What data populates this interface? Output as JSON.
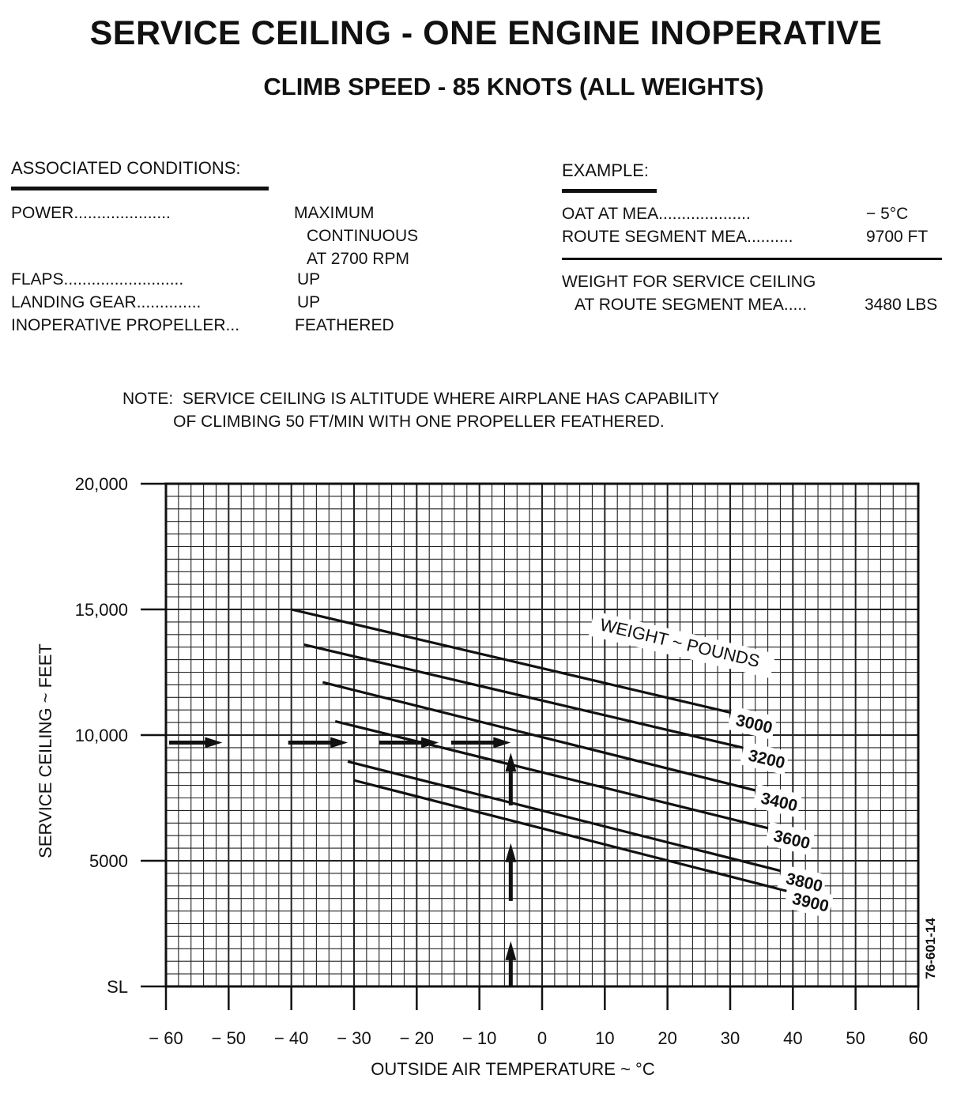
{
  "header": {
    "title": "SERVICE CEILING - ONE ENGINE INOPERATIVE",
    "subtitle": "CLIMB SPEED - 85 KNOTS (ALL WEIGHTS)"
  },
  "conditions": {
    "heading": "ASSOCIATED CONDITIONS:",
    "rows": [
      {
        "label": "POWER",
        "dots": ".....................",
        "value": "MAXIMUM"
      },
      {
        "label": "",
        "dots": "",
        "value": "CONTINUOUS"
      },
      {
        "label": "",
        "dots": "",
        "value": "AT 2700 RPM"
      },
      {
        "label": "FLAPS",
        "dots": "..........................",
        "value": "UP"
      },
      {
        "label": "LANDING GEAR",
        "dots": "..............",
        "value": "UP"
      },
      {
        "label": "INOPERATIVE PROPELLER",
        "dots": "...",
        "value": "FEATHERED"
      }
    ]
  },
  "example": {
    "heading": "EXAMPLE:",
    "rows": [
      {
        "label": "OAT AT MEA",
        "dots": "....................",
        "value": "− 5°C"
      },
      {
        "label": "ROUTE SEGMENT MEA",
        "dots": "..........",
        "value": "9700 FT"
      }
    ],
    "weight_line1": "WEIGHT FOR SERVICE CEILING",
    "weight_label": "AT ROUTE SEGMENT MEA",
    "weight_dots": ".....",
    "weight_value": "3480 LBS"
  },
  "note": {
    "line1": "NOTE:  SERVICE CEILING IS ALTITUDE WHERE AIRPLANE HAS CAPABILITY",
    "line2": "           OF CLIMBING 50 FT/MIN WITH ONE PROPELLER FEATHERED."
  },
  "chart_data": {
    "type": "line",
    "title": "SERVICE CEILING - ONE ENGINE INOPERATIVE",
    "subtitle": "CLIMB SPEED - 85 KNOTS (ALL WEIGHTS)",
    "xlabel": "OUTSIDE AIR TEMPERATURE ~ °C",
    "ylabel": "SERVICE CEILING ~ FEET",
    "xlim": [
      -60,
      60
    ],
    "ylim": [
      0,
      20000
    ],
    "x_ticks": [
      "− 60",
      "− 50",
      "− 40",
      "− 30",
      "− 20",
      "− 10",
      "0",
      "10",
      "20",
      "30",
      "40",
      "50",
      "60"
    ],
    "x_tick_values": [
      -60,
      -50,
      -40,
      -30,
      -20,
      -10,
      0,
      10,
      20,
      30,
      40,
      50,
      60
    ],
    "y_ticks": [
      "SL",
      "5000",
      "10,000",
      "15,000",
      "20,000"
    ],
    "y_tick_values": [
      0,
      5000,
      10000,
      15000,
      20000
    ],
    "grid": true,
    "legend_title": "WEIGHT ~ POUNDS",
    "series": [
      {
        "name": "3000",
        "x": [
          -40,
          30
        ],
        "y": [
          15000,
          10900
        ]
      },
      {
        "name": "3200",
        "x": [
          -38,
          32
        ],
        "y": [
          13600,
          9500
        ]
      },
      {
        "name": "3400",
        "x": [
          -35,
          34
        ],
        "y": [
          12100,
          7800
        ]
      },
      {
        "name": "3600",
        "x": [
          -33,
          36
        ],
        "y": [
          10550,
          6300
        ]
      },
      {
        "name": "3800",
        "x": [
          -31,
          38
        ],
        "y": [
          8950,
          4600
        ]
      },
      {
        "name": "3900",
        "x": [
          -30,
          39
        ],
        "y": [
          8200,
          3800
        ]
      }
    ],
    "example_path": {
      "temperature": -5,
      "mea": 9700,
      "weight": 3480
    },
    "chart_id": "76-601-14"
  }
}
